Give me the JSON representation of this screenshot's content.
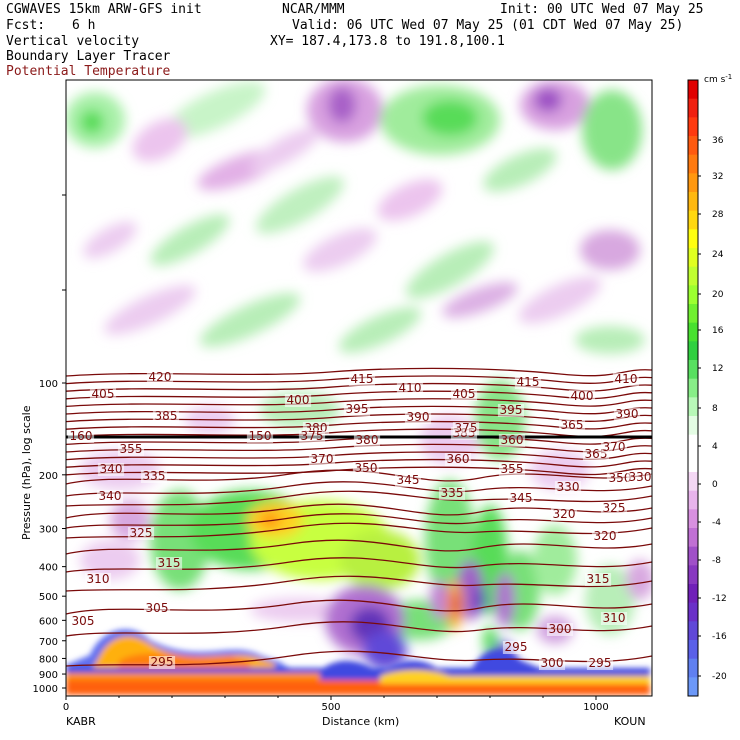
{
  "header": {
    "model": "CGWAVES 15km ARW-GFS init",
    "org": "NCAR/MMM",
    "init": "Init: 00 UTC Wed 07 May 25",
    "fcst_label": "Fcst:",
    "fcst_value": "6 h",
    "valid": "Valid: 06 UTC Wed 07 May 25 (01 CDT Wed 07 May 25)",
    "field1": "Vertical velocity",
    "field2": "Boundary Layer Tracer",
    "field3": "Potential Temperature",
    "xy": "XY= 187.4,173.8 to 191.8,100.1",
    "field3_color": "#8b1a1a"
  },
  "chart_data": {
    "type": "heatmap",
    "xlabel": "Distance (km)",
    "ylabel": "Pressure (hPa), log scale",
    "x_ticks": [
      0,
      500,
      1000
    ],
    "xlim": [
      0,
      1100
    ],
    "y_ticks": [
      100,
      200,
      300,
      400,
      500,
      600,
      700,
      800,
      900,
      1000
    ],
    "y_scale": "log",
    "x_endpoints": {
      "left": "KABR",
      "right": "KOUN"
    },
    "colorbar": {
      "unit": "cm s",
      "unit_exp": "-1",
      "labels": [
        36,
        32,
        28,
        24,
        20,
        16,
        12,
        8,
        4,
        0,
        -4,
        -8,
        -12,
        -16,
        -20
      ],
      "colors": [
        "#e00000",
        "#f02010",
        "#ff3a10",
        "#ff5a10",
        "#ff7a10",
        "#ff9810",
        "#ffb810",
        "#ffd810",
        "#ffff10",
        "#e0ff20",
        "#c0ff30",
        "#9cff30",
        "#70f030",
        "#48e030",
        "#30d040",
        "#58e060",
        "#88ee88",
        "#b8f8b8",
        "#e4fce4",
        "#ffffff",
        "#ffffff",
        "#f4d8f4",
        "#e8b4ec",
        "#d890e0",
        "#c070d4",
        "#a050c8",
        "#8838c0",
        "#7020b8",
        "#6a30c8",
        "#6048d8",
        "#5a60e8",
        "#6080f0",
        "#6c98f8"
      ]
    },
    "theta_contour_labels": [
      "420",
      "415",
      "410",
      "415",
      "410",
      "405",
      "400",
      "395",
      "405",
      "395",
      "400",
      "390",
      "385",
      "380",
      "390",
      "385",
      "365",
      "160",
      "150",
      "375",
      "380",
      "375",
      "360",
      "355",
      "370",
      "360",
      "365",
      "370",
      "340",
      "335",
      "350",
      "345",
      "355",
      "350",
      "330",
      "340",
      "335",
      "345",
      "330",
      "325",
      "325",
      "320",
      "320",
      "315",
      "315",
      "310",
      "310",
      "305",
      "305",
      "300",
      "295",
      "300",
      "295",
      "295"
    ],
    "theta_levels": [
      295,
      300,
      305,
      310,
      315,
      320,
      325,
      330,
      335,
      340,
      345,
      350,
      355,
      360,
      365,
      370,
      375,
      380,
      385,
      390,
      395,
      400,
      405,
      410,
      415,
      420
    ]
  }
}
